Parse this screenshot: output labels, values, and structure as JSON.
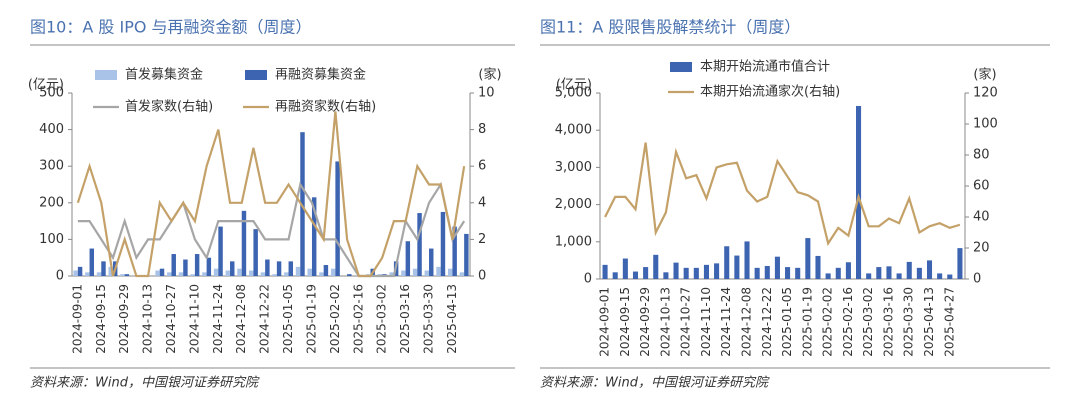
{
  "chart_data": [
    {
      "type": "bar",
      "title": "图10：A 股 IPO 与再融资金额（周度）",
      "source": "资料来源：Wind，中国银河证券研究院",
      "y_label": "(亿元)",
      "y2_label": "(家)",
      "categories": [
        "2024-09-01",
        null,
        "2024-09-15",
        null,
        "2024-09-29",
        null,
        "2024-10-13",
        null,
        "2024-10-27",
        null,
        "2024-11-10",
        null,
        "2024-11-24",
        null,
        "2024-12-08",
        null,
        "2024-12-22",
        null,
        "2025-01-05",
        null,
        "2025-01-19",
        null,
        "2025-02-02",
        null,
        "2025-02-16",
        null,
        "2025-03-02",
        null,
        "2025-03-16",
        null,
        "2025-03-30",
        null,
        "2025-04-13",
        null
      ],
      "series": [
        {
          "name": "首发募集资金",
          "type": "bar",
          "color": "#a9c3e8",
          "values": [
            15,
            10,
            10,
            25,
            5,
            0,
            0,
            15,
            10,
            10,
            5,
            10,
            20,
            15,
            20,
            15,
            10,
            5,
            10,
            25,
            20,
            10,
            20,
            0,
            0,
            5,
            5,
            10,
            15,
            20,
            15,
            25,
            20,
            10
          ]
        },
        {
          "name": "再融资募集资金",
          "type": "bar",
          "color": "#3c64b0",
          "values": [
            25,
            75,
            40,
            40,
            5,
            0,
            0,
            20,
            60,
            45,
            60,
            50,
            135,
            40,
            178,
            128,
            45,
            40,
            40,
            393,
            215,
            30,
            313,
            5,
            0,
            20,
            5,
            40,
            95,
            172,
            75,
            175,
            135,
            115
          ]
        },
        {
          "name": "首发家数(右轴)",
          "type": "line",
          "axis": "y2",
          "color": "#a6a6a6",
          "values": [
            3,
            3,
            2,
            1,
            3,
            1,
            2,
            2,
            3,
            4,
            2,
            1,
            3,
            3,
            3,
            3,
            2,
            2,
            2,
            5,
            4,
            2,
            2,
            1,
            0,
            0,
            0,
            0,
            3,
            2,
            4,
            5,
            2,
            3
          ]
        },
        {
          "name": "再融资家数(右轴)",
          "type": "line",
          "axis": "y2",
          "color": "#c4a168",
          "values": [
            4,
            6,
            4,
            0,
            2,
            0,
            0,
            4,
            3,
            4,
            3,
            6,
            8,
            4,
            4,
            7,
            4,
            4,
            5,
            4,
            3,
            2,
            9,
            2,
            0,
            0,
            1,
            3,
            3,
            6,
            5,
            5,
            2,
            6
          ]
        }
      ],
      "ylim": [
        0,
        500
      ],
      "yticks": [
        0,
        100,
        200,
        300,
        400,
        500
      ],
      "y2lim": [
        0,
        10
      ],
      "y2ticks": [
        0,
        2,
        4,
        6,
        8,
        10
      ]
    },
    {
      "type": "bar",
      "title": "图11：A 股限售股解禁统计（周度）",
      "source": "资料来源：Wind，中国银河证券研究院",
      "y_label": "(亿元)",
      "y2_label": "(家)",
      "categories": [
        "2024-09-01",
        null,
        "2024-09-15",
        null,
        "2024-09-29",
        null,
        "2024-10-13",
        null,
        "2024-10-27",
        null,
        "2024-11-10",
        null,
        "2024-11-24",
        null,
        "2024-12-08",
        null,
        "2024-12-22",
        null,
        "2025-01-05",
        null,
        "2025-01-19",
        null,
        "2025-02-02",
        null,
        "2025-02-16",
        null,
        "2025-03-02",
        null,
        "2025-03-16",
        null,
        "2025-03-30",
        null,
        "2025-04-13",
        null,
        "2025-04-27",
        null
      ],
      "series": [
        {
          "name": "本期开始流通市值合计",
          "type": "bar",
          "color": "#3c64b0",
          "values": [
            380,
            180,
            550,
            200,
            320,
            650,
            180,
            440,
            300,
            300,
            380,
            420,
            880,
            630,
            1010,
            300,
            350,
            600,
            320,
            300,
            1100,
            620,
            150,
            300,
            450,
            4650,
            150,
            320,
            340,
            150,
            460,
            300,
            500,
            150,
            120,
            830
          ]
        },
        {
          "name": "本期开始流通家次(右轴)",
          "type": "line",
          "axis": "y2",
          "color": "#c4a168",
          "values": [
            40,
            53,
            53,
            45,
            88,
            30,
            43,
            82,
            65,
            67,
            52,
            72,
            74,
            75,
            57,
            50,
            53,
            76,
            66,
            56,
            54,
            50,
            23,
            33,
            28,
            53,
            34,
            34,
            39,
            36,
            52,
            30,
            34,
            36,
            33,
            35
          ]
        }
      ],
      "ylim": [
        0,
        5000
      ],
      "yticks": [
        0,
        {
          "value": 1000,
          "label": "1,000"
        },
        {
          "value": 2000,
          "label": "2,000"
        },
        {
          "value": 3000,
          "label": "3,000"
        },
        {
          "value": 4000,
          "label": "4,000"
        },
        {
          "value": 5000,
          "label": "5,000"
        }
      ],
      "y2lim": [
        0,
        120
      ],
      "y2ticks": [
        0,
        20,
        40,
        60,
        80,
        100,
        120
      ]
    }
  ]
}
